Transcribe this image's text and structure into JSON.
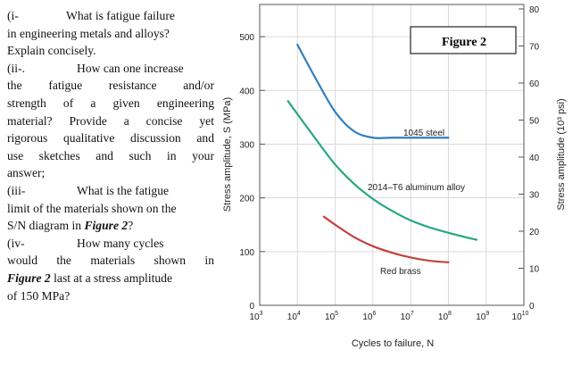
{
  "questions": [
    {
      "label": "(i-",
      "lines": [
        "What is fatigue failure",
        "in engineering metals and alloys?",
        "Explain concisely."
      ]
    },
    {
      "label": "(ii-.",
      "lines": [
        "How can one increase",
        "the fatigue resistance and/or",
        "strength of a given engineering",
        "material? Provide a concise yet",
        "rigorous qualitative discussion and",
        "use sketches and such in your",
        "answer;"
      ]
    },
    {
      "label": "(iii-",
      "lines": [
        "What is the fatigue",
        "limit of the materials shown on the",
        "S/N diagram in ",
        "Figure 2",
        "?"
      ]
    },
    {
      "label": "(iv-",
      "lines": [
        "How many cycles",
        "would the materials shown in",
        "Figure 2",
        " last at a stress amplitude",
        "of 150 MPa?"
      ]
    }
  ],
  "chart_data": {
    "type": "line",
    "title": "Figure 2",
    "xlabel": "Cycles to failure, N",
    "ylabel": "Stress amplitude, S (MPa)",
    "ylabel_right": "Stress amplitude (10³ psi)",
    "x_scale": "log",
    "x_tick_exponents": [
      3,
      4,
      5,
      6,
      7,
      8,
      9,
      10
    ],
    "y_ticks": [
      0,
      100,
      200,
      300,
      400,
      500
    ],
    "y_right_ticks": [
      0,
      10,
      20,
      30,
      40,
      50,
      60,
      70,
      80
    ],
    "ylim": [
      0,
      560
    ],
    "y_right_lim": [
      0,
      81.2
    ],
    "series": [
      {
        "name": "1045 steel",
        "color": "#2f7fbf",
        "points": [
          [
            4,
            485
          ],
          [
            4.5,
            420
          ],
          [
            5,
            360
          ],
          [
            5.5,
            324
          ],
          [
            6,
            312
          ],
          [
            6.5,
            312
          ],
          [
            7,
            312
          ],
          [
            7.5,
            312
          ],
          [
            8,
            312
          ]
        ]
      },
      {
        "name": "2014–T6 aluminum alloy",
        "color": "#26a784",
        "points": [
          [
            3.75,
            380
          ],
          [
            4.5,
            308
          ],
          [
            5,
            262
          ],
          [
            5.5,
            226
          ],
          [
            6,
            198
          ],
          [
            6.5,
            176
          ],
          [
            7,
            158
          ],
          [
            7.5,
            145
          ],
          [
            8,
            135
          ],
          [
            8.5,
            126
          ],
          [
            8.75,
            122
          ]
        ]
      },
      {
        "name": "Red brass",
        "color": "#c5403f",
        "points": [
          [
            4.7,
            165
          ],
          [
            5,
            150
          ],
          [
            5.5,
            127
          ],
          [
            6,
            110
          ],
          [
            6.5,
            98
          ],
          [
            7,
            89
          ],
          [
            7.5,
            83
          ],
          [
            8,
            80
          ]
        ]
      }
    ],
    "grid": true
  }
}
